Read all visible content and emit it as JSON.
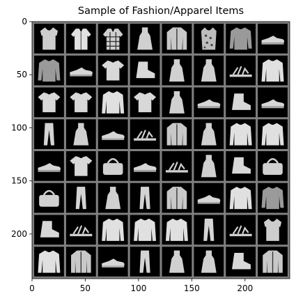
{
  "title": "Sample of Fashion/Apparel Items",
  "axes": {
    "x_ticks": [
      0,
      50,
      100,
      150,
      200
    ],
    "y_ticks": [
      0,
      50,
      100,
      150,
      200
    ],
    "x_range": [
      0,
      242
    ],
    "y_range": [
      0,
      242
    ]
  },
  "grid": {
    "rows": 8,
    "cols": 8,
    "separator_color": "#808080",
    "cell_background": "#000000",
    "item_color": "#d8d8d8"
  },
  "items": [
    [
      "top-icon",
      "shirt-icon",
      "plaid-shirt-icon",
      "dress-icon",
      "coat-icon",
      "patterned-top-icon",
      "sweater-icon",
      "sneaker-icon"
    ],
    [
      "sweater-icon",
      "sneaker-icon",
      "tshirt-icon",
      "ankle-boot-icon",
      "dress-icon",
      "dress-icon",
      "sandal-icon",
      "pullover-icon"
    ],
    [
      "tshirt-icon",
      "tshirt-icon",
      "pullover-icon",
      "tshirt-icon",
      "dress-icon",
      "sneaker-icon",
      "ankle-boot-icon",
      "sneaker-icon"
    ],
    [
      "trouser-icon",
      "dress-icon",
      "sneaker-icon",
      "sandal-icon",
      "coat-icon",
      "dress-icon",
      "pullover-icon",
      "pullover-icon"
    ],
    [
      "sneaker-icon",
      "tshirt-icon",
      "bag-icon",
      "sneaker-icon",
      "sandal-icon",
      "dress-icon",
      "ankle-boot-icon",
      "bag-icon"
    ],
    [
      "bag-icon",
      "trouser-icon",
      "dress-icon",
      "trouser-icon",
      "coat-icon",
      "sneaker-icon",
      "pullover-icon",
      "sweater-icon"
    ],
    [
      "ankle-boot-icon",
      "sandal-icon",
      "pullover-icon",
      "pullover-icon",
      "pullover-icon",
      "trouser-icon",
      "sandal-icon",
      "top-icon"
    ],
    [
      "pullover-icon",
      "coat-icon",
      "sneaker-icon",
      "trouser-icon",
      "dress-icon",
      "dress-icon",
      "ankle-boot-icon",
      "coat-icon"
    ]
  ]
}
